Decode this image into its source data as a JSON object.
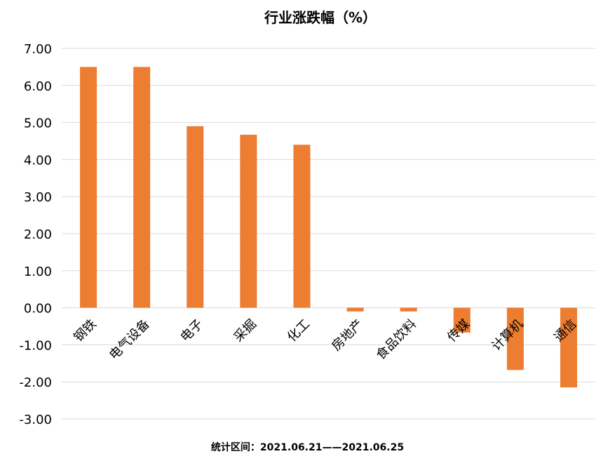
{
  "chart_data": {
    "type": "bar",
    "title": "行业涨跌幅（%）",
    "categories": [
      "钢铁",
      "电气设备",
      "电子",
      "采掘",
      "化工",
      "房地产",
      "食品饮料",
      "传媒",
      "计算机",
      "通信"
    ],
    "values": [
      6.5,
      6.5,
      4.9,
      4.67,
      4.4,
      -0.1,
      -0.1,
      -0.67,
      -1.68,
      -2.15
    ],
    "ylim": [
      -3,
      7
    ],
    "yticks": [
      "7.00",
      "6.00",
      "5.00",
      "4.00",
      "3.00",
      "2.00",
      "1.00",
      "0.00",
      "-1.00",
      "-2.00",
      "-3.00"
    ],
    "xlabel": "",
    "ylabel": "",
    "grid": true,
    "bar_color": "#ED7D31",
    "grid_color": "#D9D9D9"
  },
  "footnote": "统计区间：2021.06.21——2021.06.25"
}
